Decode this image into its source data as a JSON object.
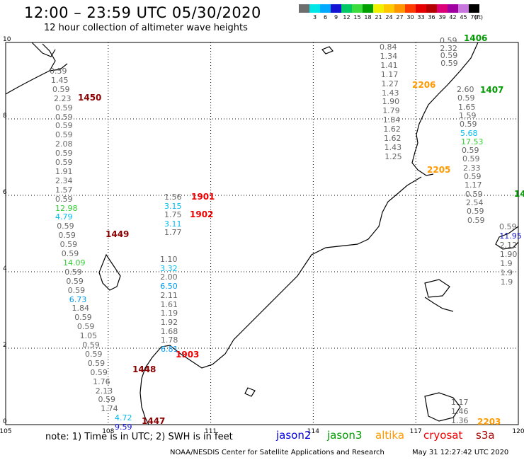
{
  "header": {
    "title": "12:00 – 23:59 UTC 05/30/2020",
    "subtitle": "12 hour collection of altimeter wave heights"
  },
  "color_scale": {
    "unit": "(ft)",
    "bins": [
      {
        "label": "",
        "color": "#6e6e6e"
      },
      {
        "label": "3",
        "color": "#00e5e5"
      },
      {
        "label": "6",
        "color": "#00aaff"
      },
      {
        "label": "9",
        "color": "#1414d2"
      },
      {
        "label": "12",
        "color": "#00c864"
      },
      {
        "label": "15",
        "color": "#3cdc3c"
      },
      {
        "label": "18",
        "color": "#00a000"
      },
      {
        "label": "21",
        "color": "#f0f000"
      },
      {
        "label": "24",
        "color": "#ffc800"
      },
      {
        "label": "27",
        "color": "#ff9600"
      },
      {
        "label": "30",
        "color": "#ff3c00"
      },
      {
        "label": "33",
        "color": "#e60000"
      },
      {
        "label": "36",
        "color": "#b40000"
      },
      {
        "label": "39",
        "color": "#dc0078"
      },
      {
        "label": "42",
        "color": "#a000a0"
      },
      {
        "label": "45",
        "color": "#c878dc"
      },
      {
        "label": "70",
        "color": "#000000"
      }
    ]
  },
  "axes": {
    "x_ticks": [
      "105",
      "108",
      "111",
      "114",
      "117",
      "120"
    ],
    "y_ticks": [
      "0",
      "2",
      "4",
      "6",
      "8",
      "10"
    ]
  },
  "footer": {
    "note": "note: 1) Time is in UTC; 2) SWH is in feet",
    "credit": "NOAA/NESDIS Center for Satellite Applications and Research",
    "timestamp": "May 31 12:27:42 UTC 2020",
    "satellites": [
      {
        "name": "jason2",
        "color": "#0000dd"
      },
      {
        "name": "jason3",
        "color": "#009900"
      },
      {
        "name": "altika",
        "color": "#ff9900"
      },
      {
        "name": "cryosat",
        "color": "#ee0000"
      },
      {
        "name": "s3a",
        "color": "#aa0000"
      }
    ]
  },
  "tracks": [
    {
      "pass": "1450",
      "pass_color": "#8b0000",
      "values": [
        {
          "v": "0.59",
          "c": "#666666"
        },
        {
          "v": "1.45",
          "c": "#666666"
        },
        {
          "v": "0.59",
          "c": "#666666"
        },
        {
          "v": "2.23",
          "c": "#666666"
        },
        {
          "v": "0.59",
          "c": "#666666"
        },
        {
          "v": "0.59",
          "c": "#666666"
        },
        {
          "v": "0.59",
          "c": "#666666"
        },
        {
          "v": "0.59",
          "c": "#666666"
        },
        {
          "v": "2.08",
          "c": "#666666"
        },
        {
          "v": "0.59",
          "c": "#666666"
        },
        {
          "v": "0.59",
          "c": "#666666"
        },
        {
          "v": "1.91",
          "c": "#666666"
        },
        {
          "v": "2.34",
          "c": "#666666"
        },
        {
          "v": "1.57",
          "c": "#666666"
        },
        {
          "v": "0.59",
          "c": "#666666"
        },
        {
          "v": "12.98",
          "c": "#33cc33"
        },
        {
          "v": "4.79",
          "c": "#00bbee"
        },
        {
          "v": "0.59",
          "c": "#666666"
        },
        {
          "v": "0.59",
          "c": "#666666"
        },
        {
          "v": "0.59",
          "c": "#666666"
        },
        {
          "v": "0.59",
          "c": "#666666"
        },
        {
          "v": "14.09",
          "c": "#33cc33"
        },
        {
          "v": "0.59",
          "c": "#666666"
        },
        {
          "v": "0.59",
          "c": "#666666"
        },
        {
          "v": "0.59",
          "c": "#666666"
        },
        {
          "v": "6.73",
          "c": "#0099ee"
        },
        {
          "v": "1.84",
          "c": "#666666"
        },
        {
          "v": "0.59",
          "c": "#666666"
        },
        {
          "v": "0.59",
          "c": "#666666"
        },
        {
          "v": "1.05",
          "c": "#666666"
        },
        {
          "v": "0.59",
          "c": "#666666"
        },
        {
          "v": "0.59",
          "c": "#666666"
        },
        {
          "v": "0.59",
          "c": "#666666"
        },
        {
          "v": "0.59",
          "c": "#666666"
        },
        {
          "v": "1.76",
          "c": "#666666"
        },
        {
          "v": "2.13",
          "c": "#666666"
        },
        {
          "v": "0.59",
          "c": "#666666"
        },
        {
          "v": "1.74",
          "c": "#666666"
        },
        {
          "v": "4.72",
          "c": "#00bbee"
        },
        {
          "v": "9.59",
          "c": "#1414d2"
        }
      ]
    },
    {
      "pass": "1449",
      "pass_color": "#8b0000",
      "values": []
    },
    {
      "pass": "1448",
      "pass_color": "#8b0000",
      "values": []
    },
    {
      "pass": "1447",
      "pass_color": "#8b0000",
      "values": []
    },
    {
      "pass": "1901",
      "pass_color": "#ee0000",
      "values": [
        {
          "v": "1.56",
          "c": "#666666"
        },
        {
          "v": "3.15",
          "c": "#00bbee"
        },
        {
          "v": "1.75",
          "c": "#666666"
        },
        {
          "v": "3.11",
          "c": "#00bbee"
        },
        {
          "v": "1.77",
          "c": "#666666"
        }
      ]
    },
    {
      "pass": "1902",
      "pass_color": "#ee0000",
      "values": [
        {
          "v": "1.10",
          "c": "#666666"
        },
        {
          "v": "3.32",
          "c": "#00bbee"
        },
        {
          "v": "2.00",
          "c": "#666666"
        },
        {
          "v": "6.50",
          "c": "#0099ee"
        },
        {
          "v": "2.11",
          "c": "#666666"
        },
        {
          "v": "1.61",
          "c": "#666666"
        },
        {
          "v": "1.19",
          "c": "#666666"
        },
        {
          "v": "1.92",
          "c": "#666666"
        },
        {
          "v": "1.68",
          "c": "#666666"
        },
        {
          "v": "1.78",
          "c": "#666666"
        },
        {
          "v": "6.81",
          "c": "#0099ee"
        }
      ]
    },
    {
      "pass": "1903",
      "pass_color": "#ee0000",
      "values": []
    },
    {
      "pass": "2206",
      "pass_color": "#ff9900",
      "values": [
        {
          "v": "0.84",
          "c": "#666666"
        },
        {
          "v": "1.34",
          "c": "#666666"
        },
        {
          "v": "1.41",
          "c": "#666666"
        },
        {
          "v": "1.17",
          "c": "#666666"
        },
        {
          "v": "1.27",
          "c": "#666666"
        },
        {
          "v": "1.43",
          "c": "#666666"
        },
        {
          "v": "1.90",
          "c": "#666666"
        },
        {
          "v": "1.79",
          "c": "#666666"
        },
        {
          "v": "1.84",
          "c": "#666666"
        },
        {
          "v": "1.62",
          "c": "#666666"
        },
        {
          "v": "1.62",
          "c": "#666666"
        },
        {
          "v": "1.43",
          "c": "#666666"
        },
        {
          "v": "1.25",
          "c": "#666666"
        }
      ]
    },
    {
      "pass": "2205",
      "pass_color": "#ff9900",
      "values": []
    },
    {
      "pass": "2203",
      "pass_color": "#ff9900",
      "values": [
        {
          "v": "1.17",
          "c": "#666666"
        },
        {
          "v": "1.46",
          "c": "#666666"
        },
        {
          "v": "1.36",
          "c": "#666666"
        }
      ]
    },
    {
      "pass": "1406",
      "pass_color": "#009900",
      "values": [
        {
          "v": "0.59",
          "c": "#666666"
        },
        {
          "v": "2.32",
          "c": "#666666"
        },
        {
          "v": "0.59",
          "c": "#666666"
        },
        {
          "v": "0.59",
          "c": "#666666"
        }
      ]
    },
    {
      "pass": "1407",
      "pass_color": "#009900",
      "values": [
        {
          "v": "2.60",
          "c": "#666666"
        },
        {
          "v": "0.59",
          "c": "#666666"
        },
        {
          "v": "1.65",
          "c": "#666666"
        },
        {
          "v": "1.59",
          "c": "#666666"
        },
        {
          "v": "0.59",
          "c": "#666666"
        },
        {
          "v": "5.68",
          "c": "#00bbee"
        },
        {
          "v": "17.53",
          "c": "#33cc33"
        },
        {
          "v": "0.59",
          "c": "#666666"
        },
        {
          "v": "0.59",
          "c": "#666666"
        },
        {
          "v": "2.33",
          "c": "#666666"
        },
        {
          "v": "0.59",
          "c": "#666666"
        },
        {
          "v": "1.17",
          "c": "#666666"
        },
        {
          "v": "0.59",
          "c": "#666666"
        },
        {
          "v": "2.54",
          "c": "#666666"
        },
        {
          "v": "0.59",
          "c": "#666666"
        },
        {
          "v": "0.59",
          "c": "#666666"
        }
      ]
    },
    {
      "pass": "14",
      "pass_color": "#009900",
      "values": []
    },
    {
      "pass": "",
      "pass_color": "#1414d2",
      "values": [
        {
          "v": "0.59",
          "c": "#666666"
        },
        {
          "v": "11.95",
          "c": "#1414d2"
        },
        {
          "v": "2.12",
          "c": "#666666"
        },
        {
          "v": "1.90",
          "c": "#666666"
        },
        {
          "v": "1.9",
          "c": "#666666"
        },
        {
          "v": "1.9",
          "c": "#666666"
        },
        {
          "v": "1.9",
          "c": "#666666"
        }
      ]
    }
  ]
}
